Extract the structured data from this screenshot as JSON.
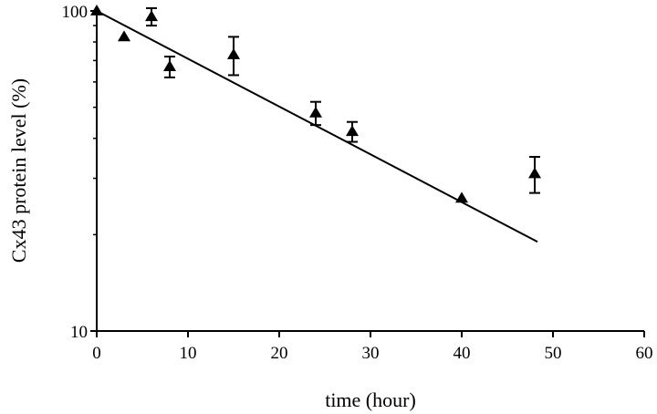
{
  "chart_data": {
    "type": "scatter",
    "title": "",
    "xlabel": "time (hour)",
    "ylabel": "Cx43 protein level (%)",
    "xscale": "linear",
    "yscale": "log",
    "xlim": [
      0,
      60
    ],
    "ylim": [
      10,
      100
    ],
    "xticks": [
      0,
      10,
      20,
      30,
      40,
      50,
      60
    ],
    "yticks": [
      10,
      100
    ],
    "grid": false,
    "legend": "none",
    "marker": "filled-triangle",
    "points": [
      {
        "x": 0,
        "y": 100
      },
      {
        "x": 3,
        "y": 83
      },
      {
        "x": 6,
        "y": 96,
        "err": 6
      },
      {
        "x": 8,
        "y": 67,
        "err": 5
      },
      {
        "x": 15,
        "y": 73,
        "err": 10
      },
      {
        "x": 24,
        "y": 48,
        "err": 4
      },
      {
        "x": 28,
        "y": 42,
        "err": 3
      },
      {
        "x": 40,
        "y": 26
      },
      {
        "x": 48,
        "y": 31,
        "err": 4
      }
    ],
    "fit_line": {
      "type": "exponential decay fit",
      "x": [
        0,
        48.3
      ],
      "y": [
        100,
        19
      ]
    }
  }
}
